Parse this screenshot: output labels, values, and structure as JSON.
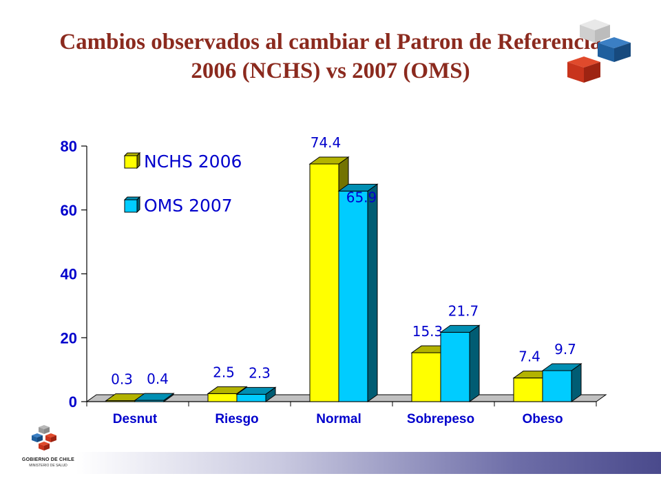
{
  "slide": {
    "title_line1": "Cambios observados al cambiar el Patron de Referencia",
    "title_line2": "2006 (NCHS) vs 2007 (OMS)"
  },
  "branding": {
    "gov_line1": "GOBIERNO DE CHILE",
    "gov_line2": "MINISTERIO DE SALUD",
    "title_color": "#8b2a1e"
  },
  "chart_data": {
    "type": "bar",
    "title": "",
    "xlabel": "",
    "ylabel": "",
    "ylim": [
      0,
      80
    ],
    "yticks": [
      0,
      20,
      40,
      60,
      80
    ],
    "categories": [
      "Desnut",
      "Riesgo",
      "Normal",
      "Sobrepeso",
      "Obeso"
    ],
    "series": [
      {
        "name": "NCHS 2006",
        "values": [
          0.3,
          2.5,
          74.4,
          15.3,
          7.4
        ],
        "labels": [
          "0.3",
          "2.5",
          "74.4",
          "15.3",
          "7.4"
        ],
        "color": "#ffff00"
      },
      {
        "name": "OMS 2007",
        "values": [
          0.4,
          2.3,
          65.9,
          21.7,
          9.7
        ],
        "labels": [
          "0.4",
          "2.3",
          "65.9",
          "21.7",
          "9.7"
        ],
        "color": "#00ccff"
      }
    ],
    "legend": "top-left",
    "grid": false,
    "style": "3d",
    "label_color": "#0000cc"
  }
}
